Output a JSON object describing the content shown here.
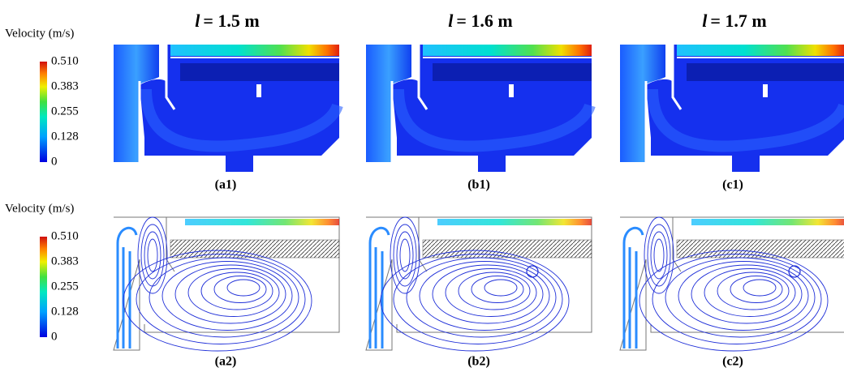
{
  "columns": [
    {
      "symbol": "l",
      "value": "= 1.5 m"
    },
    {
      "symbol": "l",
      "value": "= 1.6 m"
    },
    {
      "symbol": "l",
      "value": "= 1.7 m"
    }
  ],
  "colorbars": [
    {
      "title": "Velocity (m/s)",
      "ticks": [
        "0.510",
        "0.383",
        "0.255",
        "0.128",
        "0"
      ]
    },
    {
      "title": "Velocity (m/s)",
      "ticks": [
        "0.510",
        "0.383",
        "0.255",
        "0.128",
        "0"
      ]
    }
  ],
  "panels": [
    [
      "(a1)",
      "(b1)",
      "(c1)"
    ],
    [
      "(a2)",
      "(b2)",
      "(c2)"
    ]
  ]
}
